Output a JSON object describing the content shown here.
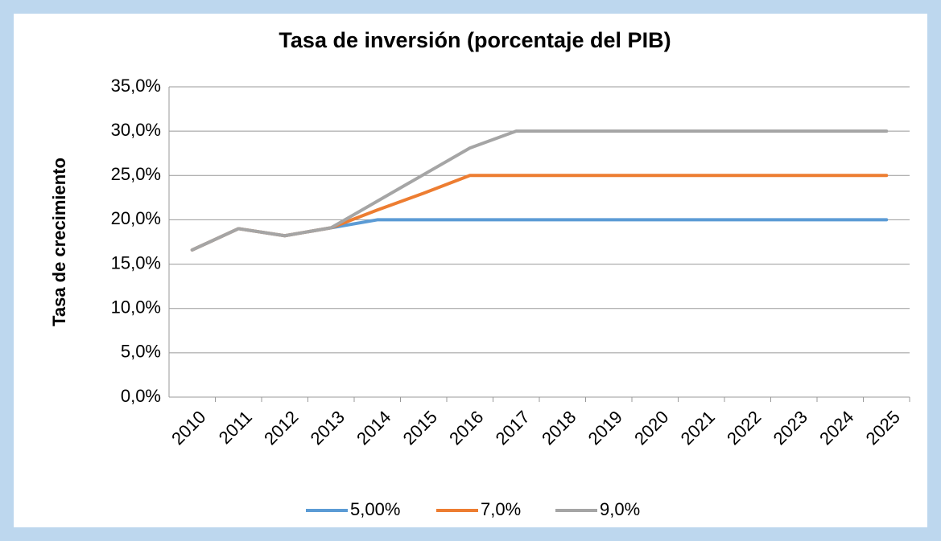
{
  "chart_data": {
    "type": "line",
    "title": "Tasa de inversión (porcentaje del PIB)",
    "y_label": "Tasa de crecimiento",
    "categories": [
      "2010",
      "2011",
      "2012",
      "2013",
      "2014",
      "2015",
      "2016",
      "2017",
      "2018",
      "2019",
      "2020",
      "2021",
      "2022",
      "2023",
      "2024",
      "2025"
    ],
    "series": [
      {
        "name": "5,00%",
        "color": "#5b9bd5",
        "values": [
          16.6,
          19.0,
          18.2,
          19.1,
          20.0,
          20.0,
          20.0,
          20.0,
          20.0,
          20.0,
          20.0,
          20.0,
          20.0,
          20.0,
          20.0,
          20.0
        ]
      },
      {
        "name": "7,0%",
        "color": "#ed7d31",
        "values": [
          16.6,
          19.0,
          18.2,
          19.1,
          21.1,
          23.0,
          25.0,
          25.0,
          25.0,
          25.0,
          25.0,
          25.0,
          25.0,
          25.0,
          25.0,
          25.0
        ]
      },
      {
        "name": "9,0%",
        "color": "#a5a5a5",
        "values": [
          16.6,
          19.0,
          18.2,
          19.1,
          22.1,
          25.1,
          28.1,
          30.0,
          30.0,
          30.0,
          30.0,
          30.0,
          30.0,
          30.0,
          30.0,
          30.0
        ]
      }
    ],
    "ylim": [
      0,
      35
    ],
    "yticks": [
      {
        "value": 0,
        "label": "0,0%"
      },
      {
        "value": 5,
        "label": "5,0%"
      },
      {
        "value": 10,
        "label": "10,0%"
      },
      {
        "value": 15,
        "label": "15,0%"
      },
      {
        "value": 20,
        "label": "20,0%"
      },
      {
        "value": 25,
        "label": "25,0%"
      },
      {
        "value": 30,
        "label": "30,0%"
      },
      {
        "value": 35,
        "label": "35,0%"
      }
    ],
    "grid": true,
    "legend": "bottom"
  }
}
